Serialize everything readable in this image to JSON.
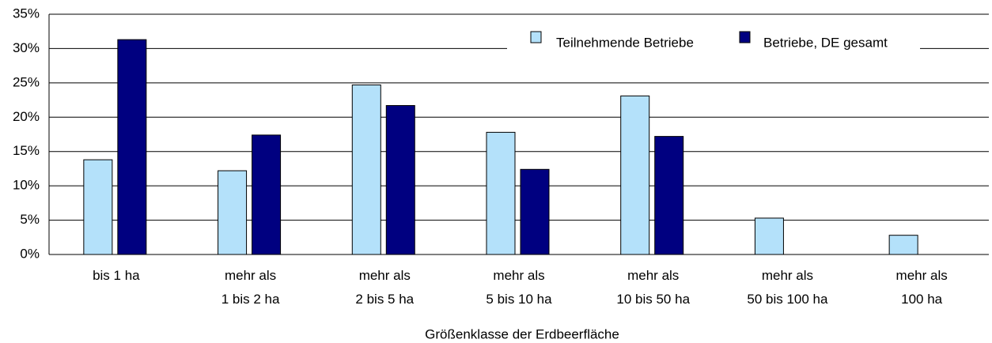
{
  "chart_data": {
    "type": "bar",
    "x_label": "Größenklasse der Erdbeerfläche",
    "categories": [
      "bis 1 ha",
      "mehr als\n1 bis 2 ha",
      "mehr als\n2 bis 5 ha",
      "mehr als\n5 bis 10 ha",
      "mehr als\n10 bis 50 ha",
      "mehr als\n50 bis 100 ha",
      "mehr als\n100 ha"
    ],
    "series": [
      {
        "name": "Teilnehmende Betriebe",
        "color": "#b4e1fa",
        "values": [
          13.8,
          12.2,
          24.7,
          17.8,
          23.1,
          5.3,
          2.8
        ]
      },
      {
        "name": "Betriebe, DE gesamt",
        "color": "#000080",
        "values": [
          31.3,
          17.4,
          21.7,
          12.4,
          17.2,
          0,
          0
        ]
      }
    ],
    "ylim": [
      0,
      35
    ],
    "yticks": [
      {
        "value": 0,
        "label": "0%"
      },
      {
        "value": 5,
        "label": "5%"
      },
      {
        "value": 10,
        "label": "10%"
      },
      {
        "value": 15,
        "label": "15%"
      },
      {
        "value": 20,
        "label": "20%"
      },
      {
        "value": 25,
        "label": "25%"
      },
      {
        "value": 30,
        "label": "30%"
      },
      {
        "value": 35,
        "label": "35%"
      }
    ],
    "grid": true,
    "legend": "upper right"
  }
}
